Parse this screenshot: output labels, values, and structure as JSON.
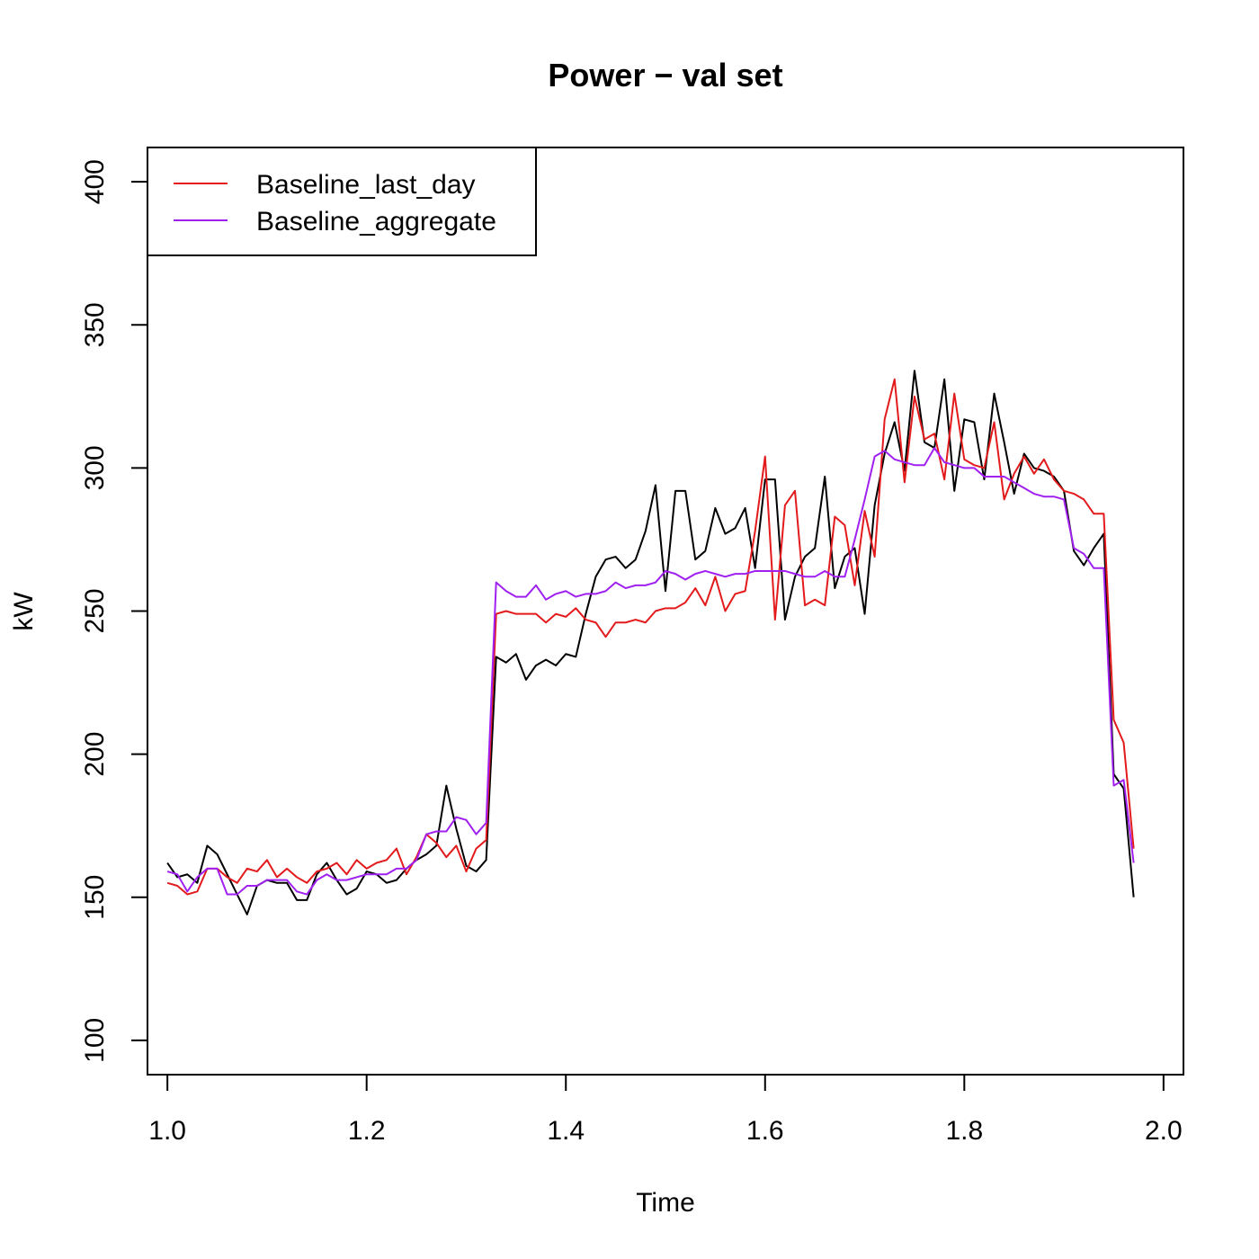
{
  "chart_data": {
    "type": "line",
    "title": "Power − val set",
    "xlabel": "Time",
    "ylabel": "kW",
    "xlim": [
      0.98,
      2.02
    ],
    "ylim": [
      88,
      412
    ],
    "x_ticks": [
      1.0,
      1.2,
      1.4,
      1.6,
      1.8,
      2.0
    ],
    "x_tick_labels": [
      "1.0",
      "1.2",
      "1.4",
      "1.6",
      "1.8",
      "2.0"
    ],
    "y_ticks": [
      100,
      150,
      200,
      250,
      300,
      350,
      400
    ],
    "y_tick_labels": [
      "100",
      "150",
      "200",
      "250",
      "300",
      "350",
      "400"
    ],
    "grid": false,
    "legend": {
      "position": "top-left",
      "entries": [
        "Baseline_last_day",
        "Baseline_aggregate"
      ]
    },
    "x_start": 1.0,
    "x_step": 0.01,
    "series": [
      {
        "color": "#000000",
        "values": [
          162,
          157,
          158,
          155,
          168,
          165,
          158,
          151,
          144,
          154,
          156,
          155,
          155,
          149,
          149,
          158,
          162,
          156,
          151,
          153,
          159,
          158,
          155,
          156,
          160,
          163,
          165,
          168,
          189,
          174,
          161,
          159,
          163,
          234,
          232,
          235,
          226,
          231,
          233,
          231,
          235,
          234,
          249,
          262,
          268,
          269,
          265,
          268,
          278,
          294,
          257,
          292,
          292,
          268,
          271,
          286,
          277,
          279,
          286,
          265,
          296,
          296,
          247,
          262,
          269,
          272,
          297,
          258,
          269,
          272,
          249,
          287,
          305,
          316,
          299,
          334,
          309,
          307,
          331,
          292,
          317,
          316,
          296,
          326,
          309,
          291,
          305,
          300,
          299,
          297,
          292,
          271,
          266,
          272,
          277,
          193,
          188,
          150
        ]
      },
      {
        "name": "Baseline_last_day",
        "color": "#e31a1c",
        "values": [
          155,
          154,
          151,
          152,
          160,
          160,
          157,
          155,
          160,
          159,
          163,
          157,
          160,
          157,
          155,
          159,
          160,
          162,
          158,
          163,
          160,
          162,
          163,
          167,
          158,
          164,
          172,
          169,
          164,
          168,
          159,
          167,
          170,
          249,
          250,
          249,
          249,
          249,
          246,
          249,
          248,
          251,
          247,
          246,
          241,
          246,
          246,
          247,
          246,
          250,
          251,
          251,
          253,
          258,
          252,
          262,
          250,
          256,
          257,
          278,
          304,
          247,
          287,
          292,
          252,
          254,
          252,
          283,
          280,
          259,
          285,
          269,
          317,
          331,
          295,
          325,
          310,
          312,
          296,
          326,
          303,
          301,
          300,
          316,
          289,
          298,
          304,
          298,
          303,
          296,
          292,
          291,
          289,
          284,
          284,
          212,
          204,
          167
        ]
      },
      {
        "name": "Baseline_aggregate",
        "color": "#a020f0",
        "values": [
          159,
          158,
          152,
          157,
          160,
          160,
          151,
          151,
          154,
          154,
          156,
          156,
          156,
          152,
          151,
          156,
          158,
          156,
          156,
          157,
          158,
          158,
          158,
          160,
          160,
          163,
          172,
          173,
          173,
          178,
          177,
          172,
          176,
          260,
          257,
          255,
          255,
          259,
          254,
          256,
          257,
          255,
          256,
          256,
          257,
          260,
          258,
          259,
          259,
          260,
          264,
          263,
          261,
          263,
          264,
          263,
          262,
          263,
          263,
          264,
          264,
          264,
          264,
          263,
          262,
          262,
          264,
          262,
          262,
          275,
          289,
          304,
          306,
          303,
          302,
          301,
          301,
          307,
          302,
          301,
          300,
          300,
          297,
          297,
          297,
          295,
          293,
          291,
          290,
          290,
          289,
          272,
          270,
          265,
          265,
          189,
          191,
          162
        ]
      }
    ]
  }
}
